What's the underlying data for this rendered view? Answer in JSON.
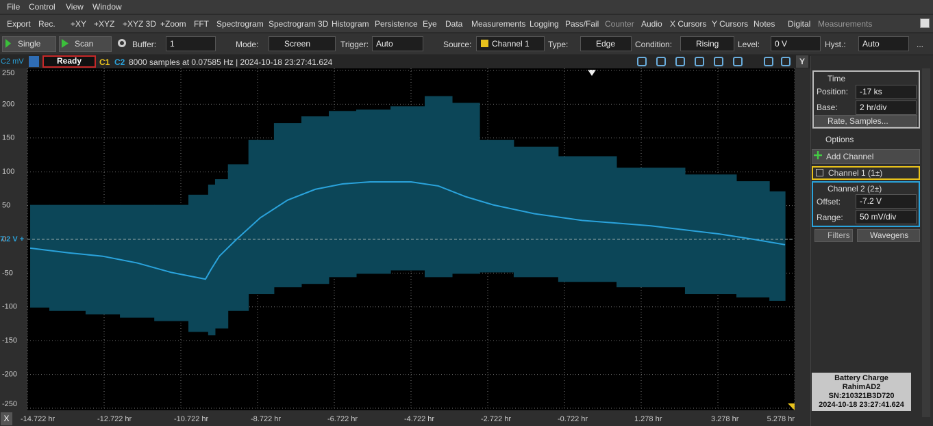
{
  "menu": [
    "File",
    "Control",
    "View",
    "Window"
  ],
  "toolbar": [
    "Export",
    "Rec.",
    "+XY",
    "+XYZ",
    "+XYZ 3D",
    "+Zoom",
    "FFT",
    "Spectrogram",
    "Spectrogram 3D",
    "Histogram",
    "Persistence",
    "Eye",
    "Data",
    "Measurements",
    "Logging",
    "Pass/Fail",
    "Counter",
    "Audio",
    "X Cursors",
    "Y Cursors",
    "Notes",
    "Digital",
    "Measurements"
  ],
  "acquisition": {
    "single": "Single",
    "scan": "Scan",
    "fields": [
      {
        "label": "Buffer:",
        "value": "1"
      },
      {
        "label": "Mode:",
        "value": "Screen"
      },
      {
        "label": "Trigger:",
        "value": "Auto"
      },
      {
        "label": "Source:",
        "value": "Channel 1"
      },
      {
        "label": "Type:",
        "value": "Edge"
      },
      {
        "label": "Condition:",
        "value": "Rising"
      },
      {
        "label": "Level:",
        "value": "0 V"
      },
      {
        "label": "Hyst.:",
        "value": "Auto"
      }
    ],
    "more": "..."
  },
  "status": {
    "state": "Ready",
    "channels": [
      "C1",
      "C2"
    ],
    "info": "8000 samples at 0.07585 Hz | 2024-10-18 23:27:41.624",
    "axis_button": "Y"
  },
  "chart_data": {
    "type": "line",
    "ylabel": "C2 mV",
    "offset_marker": "7.2 V +",
    "x_button": "X",
    "x": [
      -14.65,
      -13.65,
      -12.76,
      -11.86,
      -10.97,
      -10.08,
      -9.94,
      -9.72,
      -9.27,
      -8.65,
      -7.94,
      -7.22,
      -6.51,
      -5.79,
      -4.72,
      -4.01,
      -3.29,
      -2.58,
      -1.51,
      -0.26,
      1.53,
      3.31,
      4.21,
      5.03
    ],
    "series": [
      {
        "color": "#2aa3dc",
        "values": [
          -13,
          -20,
          -25,
          -35,
          -49,
          -59,
          -45,
          -25,
          0,
          32,
          58,
          74,
          82,
          85,
          85,
          79,
          63,
          51,
          38,
          28,
          20,
          8,
          0,
          -8
        ]
      }
    ],
    "envelope": {
      "color": "#0c4658",
      "upper": [
        51,
        51,
        51,
        51,
        51,
        66,
        81,
        89,
        111,
        147,
        172,
        182,
        190,
        192,
        197,
        212,
        202,
        147,
        137,
        123,
        106,
        96,
        86,
        71
      ],
      "lower": [
        -101,
        -106,
        -111,
        -116,
        -121,
        -137,
        -142,
        -132,
        -106,
        -81,
        -71,
        -66,
        -56,
        -51,
        -46,
        -56,
        -51,
        -49,
        -56,
        -63,
        -71,
        -81,
        -86,
        -91
      ]
    },
    "xlim": [
      -14.722,
      5.278
    ],
    "ylim": [
      -250,
      250
    ],
    "xticks": [
      {
        "value": -14.722,
        "label": "-14.722 hr"
      },
      {
        "value": -12.722,
        "label": "-12.722 hr"
      },
      {
        "value": -10.722,
        "label": "-10.722 hr"
      },
      {
        "value": -8.722,
        "label": "-8.722 hr"
      },
      {
        "value": -6.722,
        "label": "-6.722 hr"
      },
      {
        "value": -4.722,
        "label": "-4.722 hr"
      },
      {
        "value": -2.722,
        "label": "-2.722 hr"
      },
      {
        "value": -0.722,
        "label": "-0.722 hr"
      },
      {
        "value": 1.278,
        "label": "1.278 hr"
      },
      {
        "value": 3.278,
        "label": "3.278 hr"
      },
      {
        "value": 5.278,
        "label": "5.278 hr"
      }
    ],
    "yticks": [
      250,
      200,
      150,
      100,
      50,
      0,
      -50,
      -100,
      -150,
      -200,
      -250
    ],
    "grid": true
  },
  "panel": {
    "time": {
      "title": "Time",
      "fields": [
        {
          "label": "Position:",
          "value": "-17 ks"
        },
        {
          "label": "Base:",
          "value": "2 hr/div"
        }
      ],
      "button": "Rate, Samples..."
    },
    "options": "Options",
    "add_channel": "Add Channel",
    "channels": [
      {
        "title": "Channel 1 (1±)"
      },
      {
        "title": "Channel 2 (2±)",
        "fields": [
          {
            "label": "Offset:",
            "value": "-7.2 V"
          },
          {
            "label": "Range:",
            "value": "50 mV/div"
          }
        ]
      }
    ],
    "buttons": [
      "Filters",
      "Wavegens"
    ],
    "info": [
      "Battery Charge",
      "RahimAD2",
      "SN:210321B3D720",
      "2024-10-18 23:27:41.624"
    ]
  }
}
